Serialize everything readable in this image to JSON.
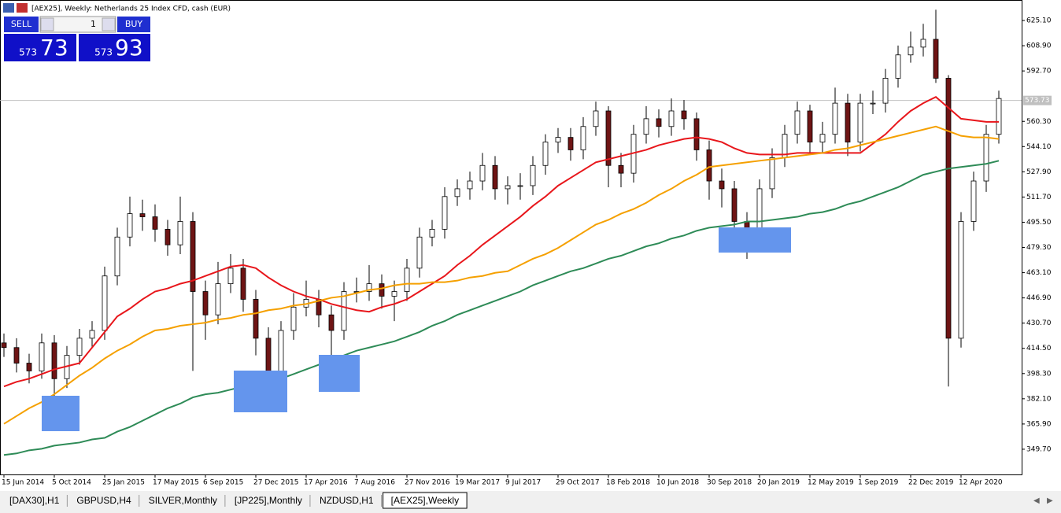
{
  "window": {
    "title": "[AEX25], Weekly:  Netherlands 25 Index CFD, cash (EUR)"
  },
  "trade_panel": {
    "sell_label": "SELL",
    "buy_label": "BUY",
    "lot": "1",
    "sell_price_small": "573",
    "sell_price_big": "73",
    "buy_price_small": "573",
    "buy_price_big": "93"
  },
  "tabs": [
    "[DAX30],H1",
    "GBPUSD,H4",
    "SILVER,Monthly",
    "[JP225],Monthly",
    "NZDUSD,H1",
    "[AEX25],Weekly"
  ],
  "active_tab": 5,
  "chart_data": {
    "type": "candlestick",
    "categories": [
      "15 Jun 2014",
      null,
      null,
      null,
      "5 Oct 2014",
      null,
      null,
      null,
      "25 Jan 2015",
      null,
      null,
      null,
      "17 May 2015",
      null,
      null,
      null,
      "6 Sep 2015",
      null,
      null,
      null,
      "27 Dec 2015",
      null,
      null,
      null,
      "17 Apr 2016",
      null,
      null,
      null,
      "7 Aug 2016",
      null,
      null,
      null,
      "27 Nov 2016",
      null,
      null,
      null,
      "19 Mar 2017",
      null,
      null,
      null,
      "9 Jul 2017",
      null,
      null,
      null,
      "29 Oct 2017",
      null,
      null,
      null,
      "18 Feb 2018",
      null,
      null,
      null,
      "10 Jun 2018",
      null,
      null,
      null,
      "30 Sep 2018",
      null,
      null,
      null,
      "20 Jan 2019",
      null,
      null,
      null,
      "12 May 2019",
      null,
      null,
      null,
      "1 Sep 2019",
      null,
      null,
      null,
      "22 Dec 2019",
      null,
      null,
      null,
      "12 Apr 2020",
      null,
      null,
      null
    ],
    "open": [
      418,
      415,
      405,
      400,
      418,
      395,
      410,
      421,
      426,
      461,
      486,
      501,
      499,
      491,
      481,
      496,
      451,
      436,
      456,
      466,
      446,
      421,
      395,
      426,
      441,
      446,
      436,
      426,
      451,
      451,
      456,
      448,
      451,
      466,
      486,
      491,
      512,
      517,
      522,
      532,
      517,
      519,
      519,
      532,
      547,
      550,
      542,
      557,
      567,
      532,
      527,
      552,
      562,
      557,
      567,
      562,
      542,
      522,
      517,
      496,
      486,
      517,
      537,
      552,
      567,
      547,
      552,
      572,
      547,
      572,
      572,
      588,
      603,
      608,
      613,
      588,
      421,
      496,
      522,
      552
    ],
    "high": [
      424,
      421,
      411,
      424,
      423,
      416,
      427,
      432,
      467,
      492,
      512,
      510,
      507,
      497,
      512,
      502,
      458,
      470,
      475,
      472,
      452,
      428,
      432,
      450,
      458,
      452,
      442,
      457,
      460,
      468,
      462,
      458,
      472,
      492,
      497,
      518,
      523,
      528,
      540,
      538,
      525,
      527,
      538,
      552,
      556,
      556,
      563,
      573,
      570,
      540,
      558,
      570,
      568,
      575,
      574,
      566,
      548,
      530,
      522,
      502,
      523,
      543,
      558,
      573,
      571,
      560,
      582,
      578,
      578,
      580,
      594,
      609,
      618,
      623,
      632,
      590,
      502,
      528,
      558,
      580
    ],
    "low": [
      409,
      399,
      392,
      395,
      366,
      389,
      404,
      415,
      420,
      455,
      480,
      490,
      483,
      474,
      475,
      400,
      420,
      430,
      450,
      438,
      410,
      378,
      390,
      420,
      435,
      428,
      398,
      420,
      444,
      445,
      440,
      432,
      445,
      460,
      480,
      485,
      506,
      510,
      516,
      510,
      507,
      510,
      513,
      526,
      540,
      535,
      536,
      551,
      518,
      518,
      521,
      546,
      550,
      551,
      555,
      535,
      510,
      505,
      490,
      472,
      480,
      511,
      531,
      546,
      540,
      540,
      546,
      538,
      541,
      565,
      566,
      582,
      598,
      602,
      585,
      390,
      415,
      490,
      515,
      546
    ],
    "close": [
      415,
      405,
      400,
      418,
      395,
      410,
      421,
      426,
      461,
      486,
      501,
      499,
      491,
      481,
      496,
      451,
      436,
      456,
      466,
      446,
      421,
      395,
      426,
      441,
      446,
      436,
      426,
      451,
      451,
      456,
      448,
      451,
      466,
      486,
      491,
      512,
      517,
      522,
      532,
      517,
      519,
      519,
      532,
      547,
      550,
      542,
      557,
      567,
      532,
      527,
      552,
      562,
      557,
      567,
      562,
      542,
      522,
      517,
      496,
      486,
      517,
      537,
      552,
      567,
      547,
      552,
      572,
      547,
      572,
      572,
      588,
      603,
      608,
      613,
      588,
      421,
      496,
      522,
      552,
      575
    ],
    "up_color": "#ffffff",
    "down_color": "#6e1414",
    "wick_color": "#000000",
    "moving_averages": [
      {
        "color": "#e8161b",
        "values": [
          390,
          393,
          395,
          398,
          401,
          403,
          405,
          415,
          425,
          435,
          440,
          446,
          451,
          453,
          456,
          458,
          461,
          464,
          467,
          468,
          466,
          460,
          455,
          451,
          448,
          446,
          443,
          441,
          439,
          438,
          441,
          443,
          446,
          451,
          456,
          461,
          468,
          474,
          481,
          487,
          493,
          499,
          506,
          512,
          519,
          524,
          529,
          534,
          536,
          538,
          540,
          542,
          545,
          547,
          549,
          550,
          549,
          547,
          543,
          540,
          539,
          539,
          539,
          540,
          540,
          540,
          540,
          540,
          540,
          546,
          552,
          560,
          567,
          572,
          576,
          569,
          562,
          561,
          560,
          560
        ]
      },
      {
        "color": "#f5a000",
        "values": [
          366,
          371,
          376,
          380,
          385,
          391,
          397,
          402,
          408,
          413,
          417,
          422,
          426,
          427,
          429,
          430,
          431,
          433,
          434,
          436,
          437,
          439,
          440,
          442,
          443,
          445,
          447,
          448,
          450,
          452,
          453,
          455,
          456,
          456,
          457,
          457,
          458,
          460,
          461,
          463,
          464,
          468,
          472,
          475,
          479,
          484,
          489,
          494,
          497,
          501,
          504,
          508,
          513,
          517,
          522,
          526,
          531,
          532,
          533,
          534,
          535,
          536,
          537,
          538,
          539,
          540,
          542,
          543,
          545,
          547,
          549,
          551,
          553,
          555,
          557,
          554,
          551,
          550,
          550,
          549
        ]
      },
      {
        "color": "#2e8b57",
        "values": [
          346,
          347,
          349,
          350,
          352,
          353,
          354,
          356,
          357,
          361,
          364,
          368,
          372,
          376,
          379,
          383,
          385,
          386,
          388,
          390,
          392,
          393,
          395,
          398,
          401,
          404,
          407,
          410,
          413,
          415,
          417,
          419,
          422,
          425,
          429,
          432,
          436,
          439,
          442,
          445,
          448,
          451,
          455,
          458,
          461,
          464,
          466,
          469,
          472,
          474,
          477,
          480,
          482,
          485,
          487,
          490,
          492,
          493,
          494,
          496,
          496,
          497,
          498,
          499,
          501,
          502,
          504,
          507,
          509,
          512,
          515,
          518,
          522,
          526,
          528,
          530,
          531,
          532,
          533,
          535
        ]
      }
    ],
    "current_price": 573.73,
    "current_price_color": "#c0c0c0",
    "ylim": [
      333.5,
      638.26
    ],
    "yticks": [
      {
        "value": 625.1,
        "label": "625.10"
      },
      {
        "value": 608.9,
        "label": "608.90"
      },
      {
        "value": 592.7,
        "label": "592.70"
      },
      {
        "value": 560.3,
        "label": "560.30"
      },
      {
        "value": 544.1,
        "label": "544.10"
      },
      {
        "value": 527.9,
        "label": "527.90"
      },
      {
        "value": 511.7,
        "label": "511.70"
      },
      {
        "value": 495.5,
        "label": "495.50"
      },
      {
        "value": 479.3,
        "label": "479.30"
      },
      {
        "value": 463.1,
        "label": "463.10"
      },
      {
        "value": 446.9,
        "label": "446.90"
      },
      {
        "value": 430.7,
        "label": "430.70"
      },
      {
        "value": 414.5,
        "label": "414.50"
      },
      {
        "value": 398.3,
        "label": "398.30"
      },
      {
        "value": 382.1,
        "label": "382.10"
      },
      {
        "value": 365.9,
        "label": "365.90"
      },
      {
        "value": 349.7,
        "label": "349.70"
      }
    ],
    "grid": false
  }
}
